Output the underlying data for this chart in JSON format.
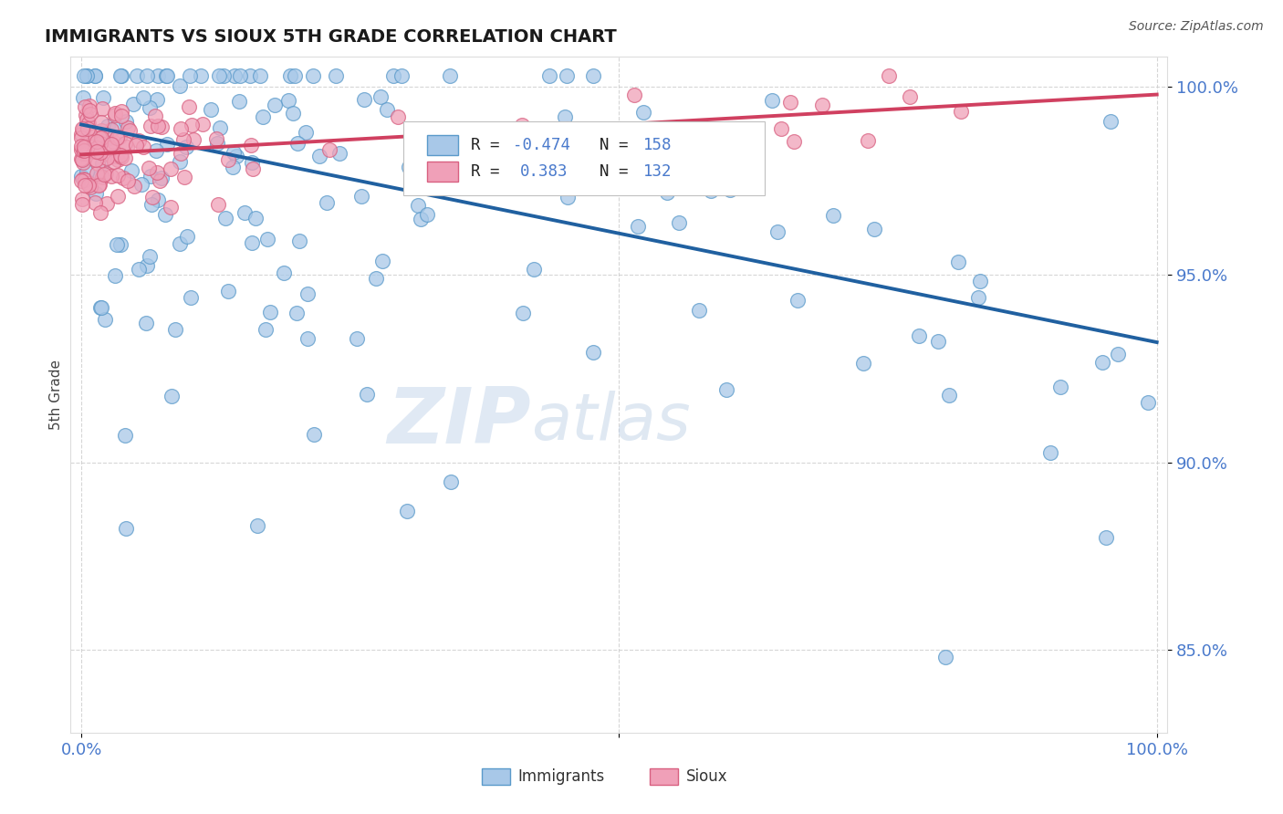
{
  "title": "IMMIGRANTS VS SIOUX 5TH GRADE CORRELATION CHART",
  "source_text": "Source: ZipAtlas.com",
  "ylabel": "5th Grade",
  "watermark_zip": "ZIP",
  "watermark_atlas": "atlas",
  "xlim": [
    -0.01,
    1.01
  ],
  "ylim": [
    0.828,
    1.008
  ],
  "yticks": [
    0.85,
    0.9,
    0.95,
    1.0
  ],
  "ytick_labels": [
    "85.0%",
    "90.0%",
    "95.0%",
    "100.0%"
  ],
  "xtick_labels": [
    "0.0%",
    "100.0%"
  ],
  "legend_R1": "-0.474",
  "legend_N1": "158",
  "legend_R2": "0.383",
  "legend_N2": "132",
  "blue_scatter_color": "#A8C8E8",
  "blue_edge_color": "#5A9ACA",
  "pink_scatter_color": "#F0A0B8",
  "pink_edge_color": "#D86080",
  "blue_line_color": "#2060A0",
  "pink_line_color": "#D04060",
  "grid_color": "#CCCCCC",
  "title_color": "#1A1A1A",
  "axis_tick_color": "#4A7ACC",
  "source_color": "#555555",
  "background_color": "#FFFFFF",
  "legend_text_color_R": "#4A7ACC",
  "legend_text_color_black": "#222222",
  "watermark_color_zip": "#C8D8EC",
  "watermark_color_atlas": "#B8CCE4",
  "imm_trend_x0": 0.0,
  "imm_trend_y0": 0.99,
  "imm_trend_x1": 1.0,
  "imm_trend_y1": 0.932,
  "sioux_trend_x0": 0.0,
  "sioux_trend_y0": 0.982,
  "sioux_trend_x1": 1.0,
  "sioux_trend_y1": 0.998
}
